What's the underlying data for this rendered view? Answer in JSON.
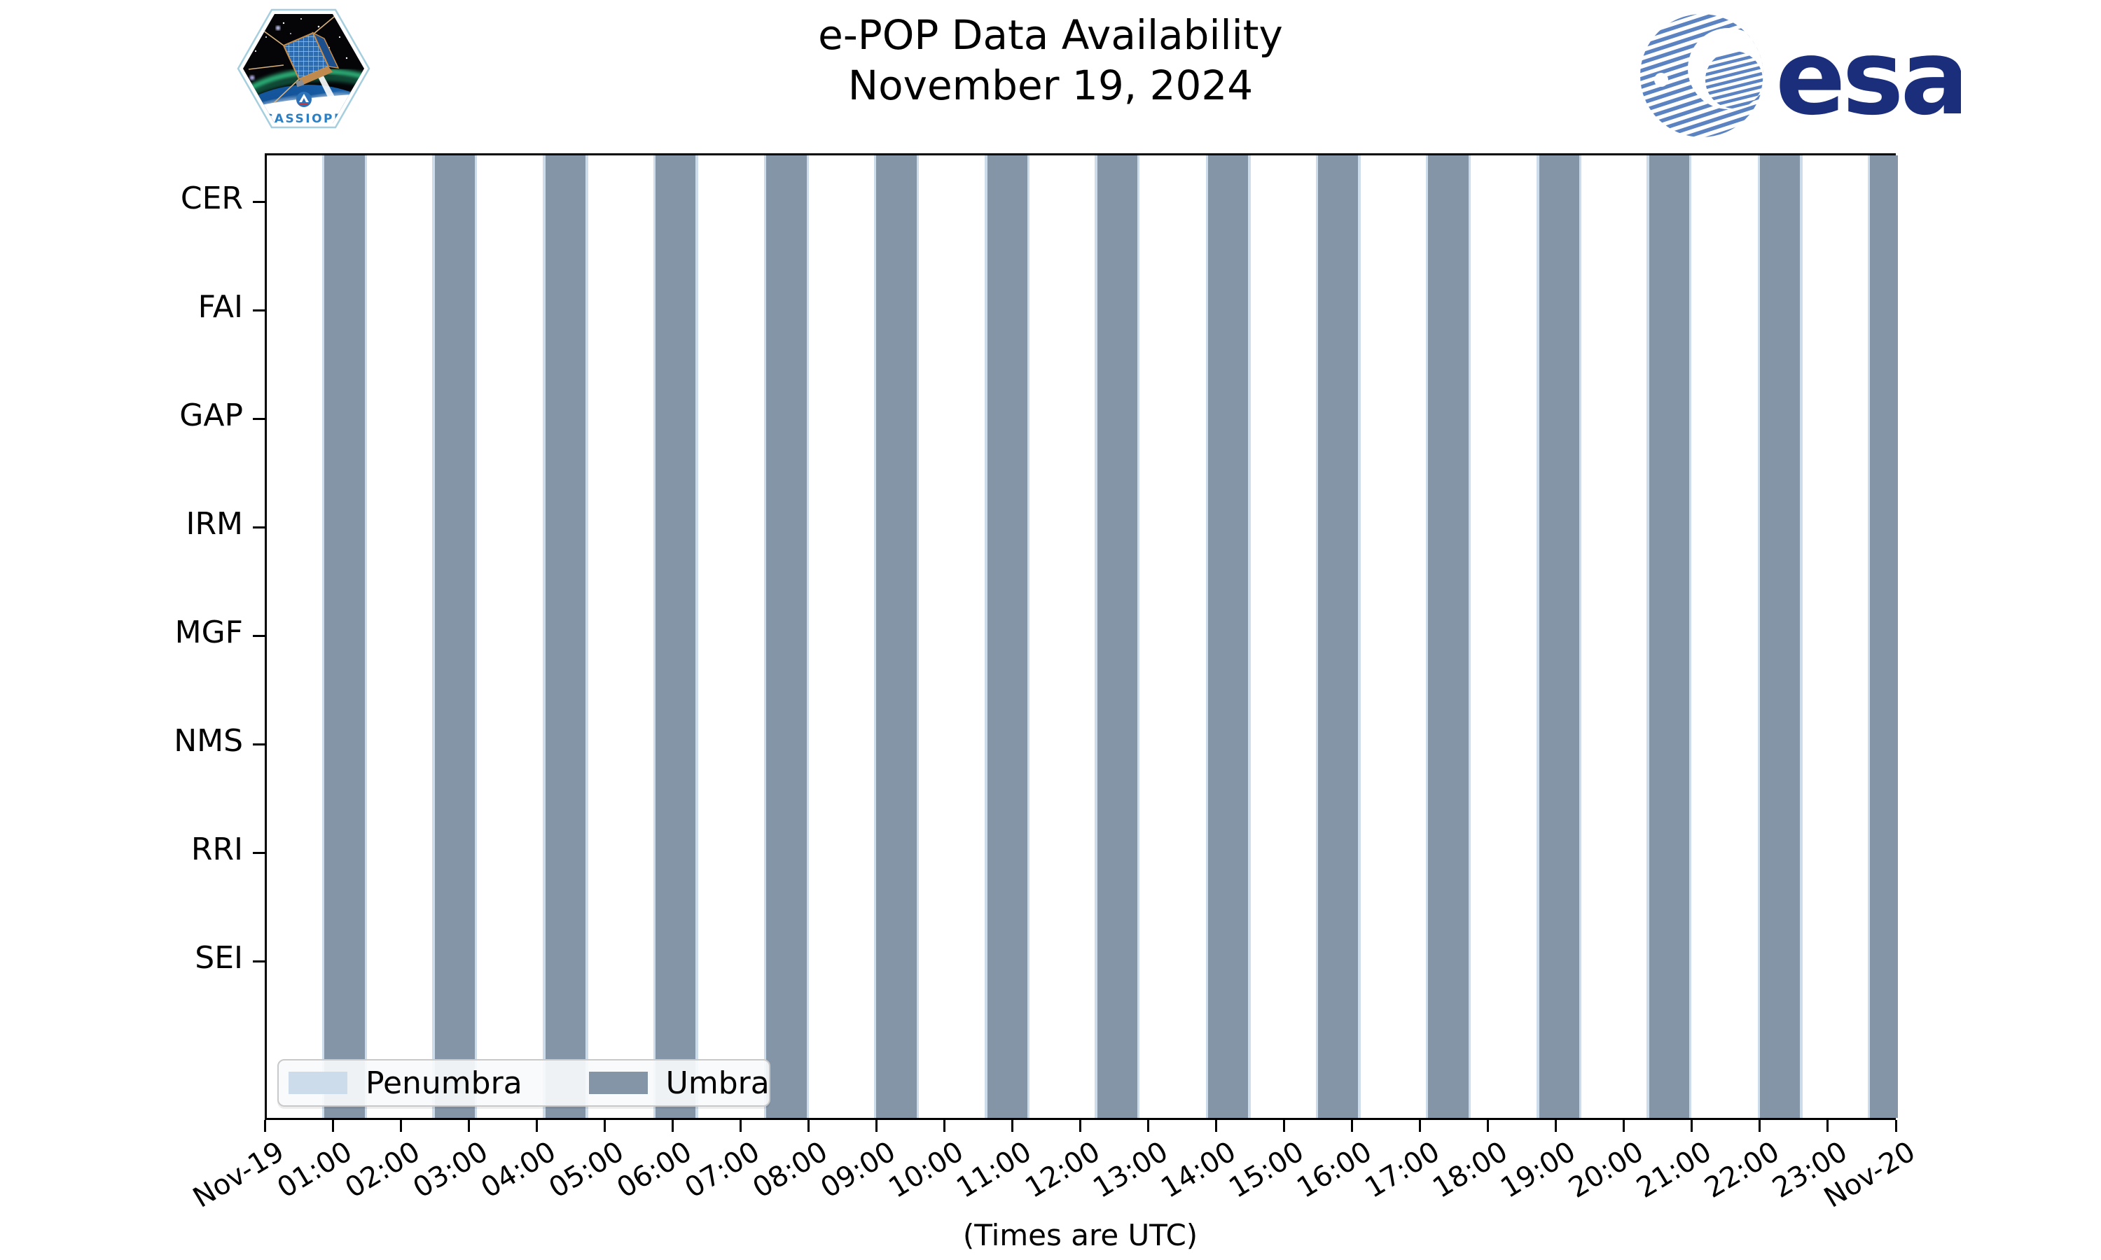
{
  "header": {
    "title_line1": "e-POP Data Availability",
    "title_line2": "November 19, 2024",
    "cassiope_label": "CASSIOPE",
    "esa_wordmark": "esa"
  },
  "chart_data": {
    "type": "bar",
    "subtype": "eclipse-interval-timeline",
    "title": "e-POP Data Availability",
    "subtitle": "November 19, 2024",
    "xlabel": "(Times are UTC)",
    "x_axis": {
      "start_label": "Nov-19",
      "end_label": "Nov-20",
      "hours_span": 24,
      "tick_labels": [
        "Nov-19",
        "01:00",
        "02:00",
        "03:00",
        "04:00",
        "05:00",
        "06:00",
        "07:00",
        "08:00",
        "09:00",
        "10:00",
        "11:00",
        "12:00",
        "13:00",
        "14:00",
        "15:00",
        "16:00",
        "17:00",
        "18:00",
        "19:00",
        "20:00",
        "21:00",
        "22:00",
        "23:00",
        "Nov-20"
      ]
    },
    "y_categories": [
      "CER",
      "FAI",
      "GAP",
      "IRM",
      "MGF",
      "NMS",
      "RRI",
      "SEI"
    ],
    "legend": [
      {
        "label": "Penumbra",
        "color": "#ccdcea"
      },
      {
        "label": "Umbra",
        "color": "#8595a8"
      }
    ],
    "umbra_intervals_hours": [
      [
        0.85,
        1.44
      ],
      [
        2.47,
        3.06
      ],
      [
        4.1,
        4.69
      ],
      [
        5.72,
        6.31
      ],
      [
        7.35,
        7.94
      ],
      [
        8.97,
        9.56
      ],
      [
        10.6,
        11.19
      ],
      [
        12.22,
        12.81
      ],
      [
        13.85,
        14.44
      ],
      [
        15.47,
        16.06
      ],
      [
        17.09,
        17.68
      ],
      [
        18.72,
        19.31
      ],
      [
        20.34,
        20.93
      ],
      [
        21.97,
        22.56
      ],
      [
        23.59,
        24.0
      ]
    ],
    "penumbra_margin_hours": 0.035,
    "colors": {
      "umbra": "#8595a8",
      "penumbra": "#ccdcea",
      "frame": "#000000"
    },
    "grid": false,
    "legend_position": "lower-left"
  }
}
